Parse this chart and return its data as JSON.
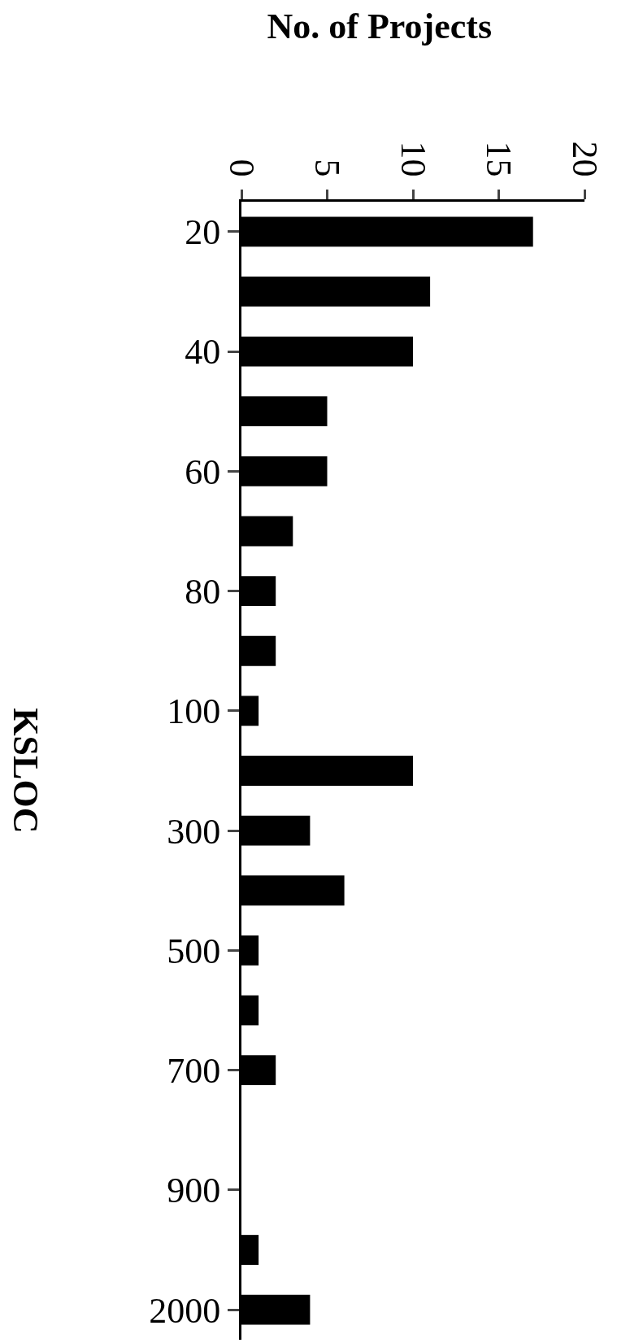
{
  "chart_data": {
    "type": "bar",
    "orientation": "horizontal",
    "title": "No. of Projects",
    "ylabel": "KSLOC",
    "categories": [
      "20",
      null,
      "40",
      null,
      "60",
      null,
      "80",
      null,
      "100",
      null,
      "300",
      null,
      "500",
      null,
      "700",
      null,
      "900",
      null,
      "2000"
    ],
    "values": [
      17,
      11,
      10,
      5,
      5,
      3,
      2,
      2,
      1,
      10,
      4,
      6,
      1,
      1,
      2,
      0,
      0,
      1,
      4
    ],
    "color": "#000000",
    "xlim": [
      0,
      20
    ],
    "xticks": [
      0,
      5,
      10,
      15,
      20
    ],
    "grid": false,
    "legend": false
  }
}
